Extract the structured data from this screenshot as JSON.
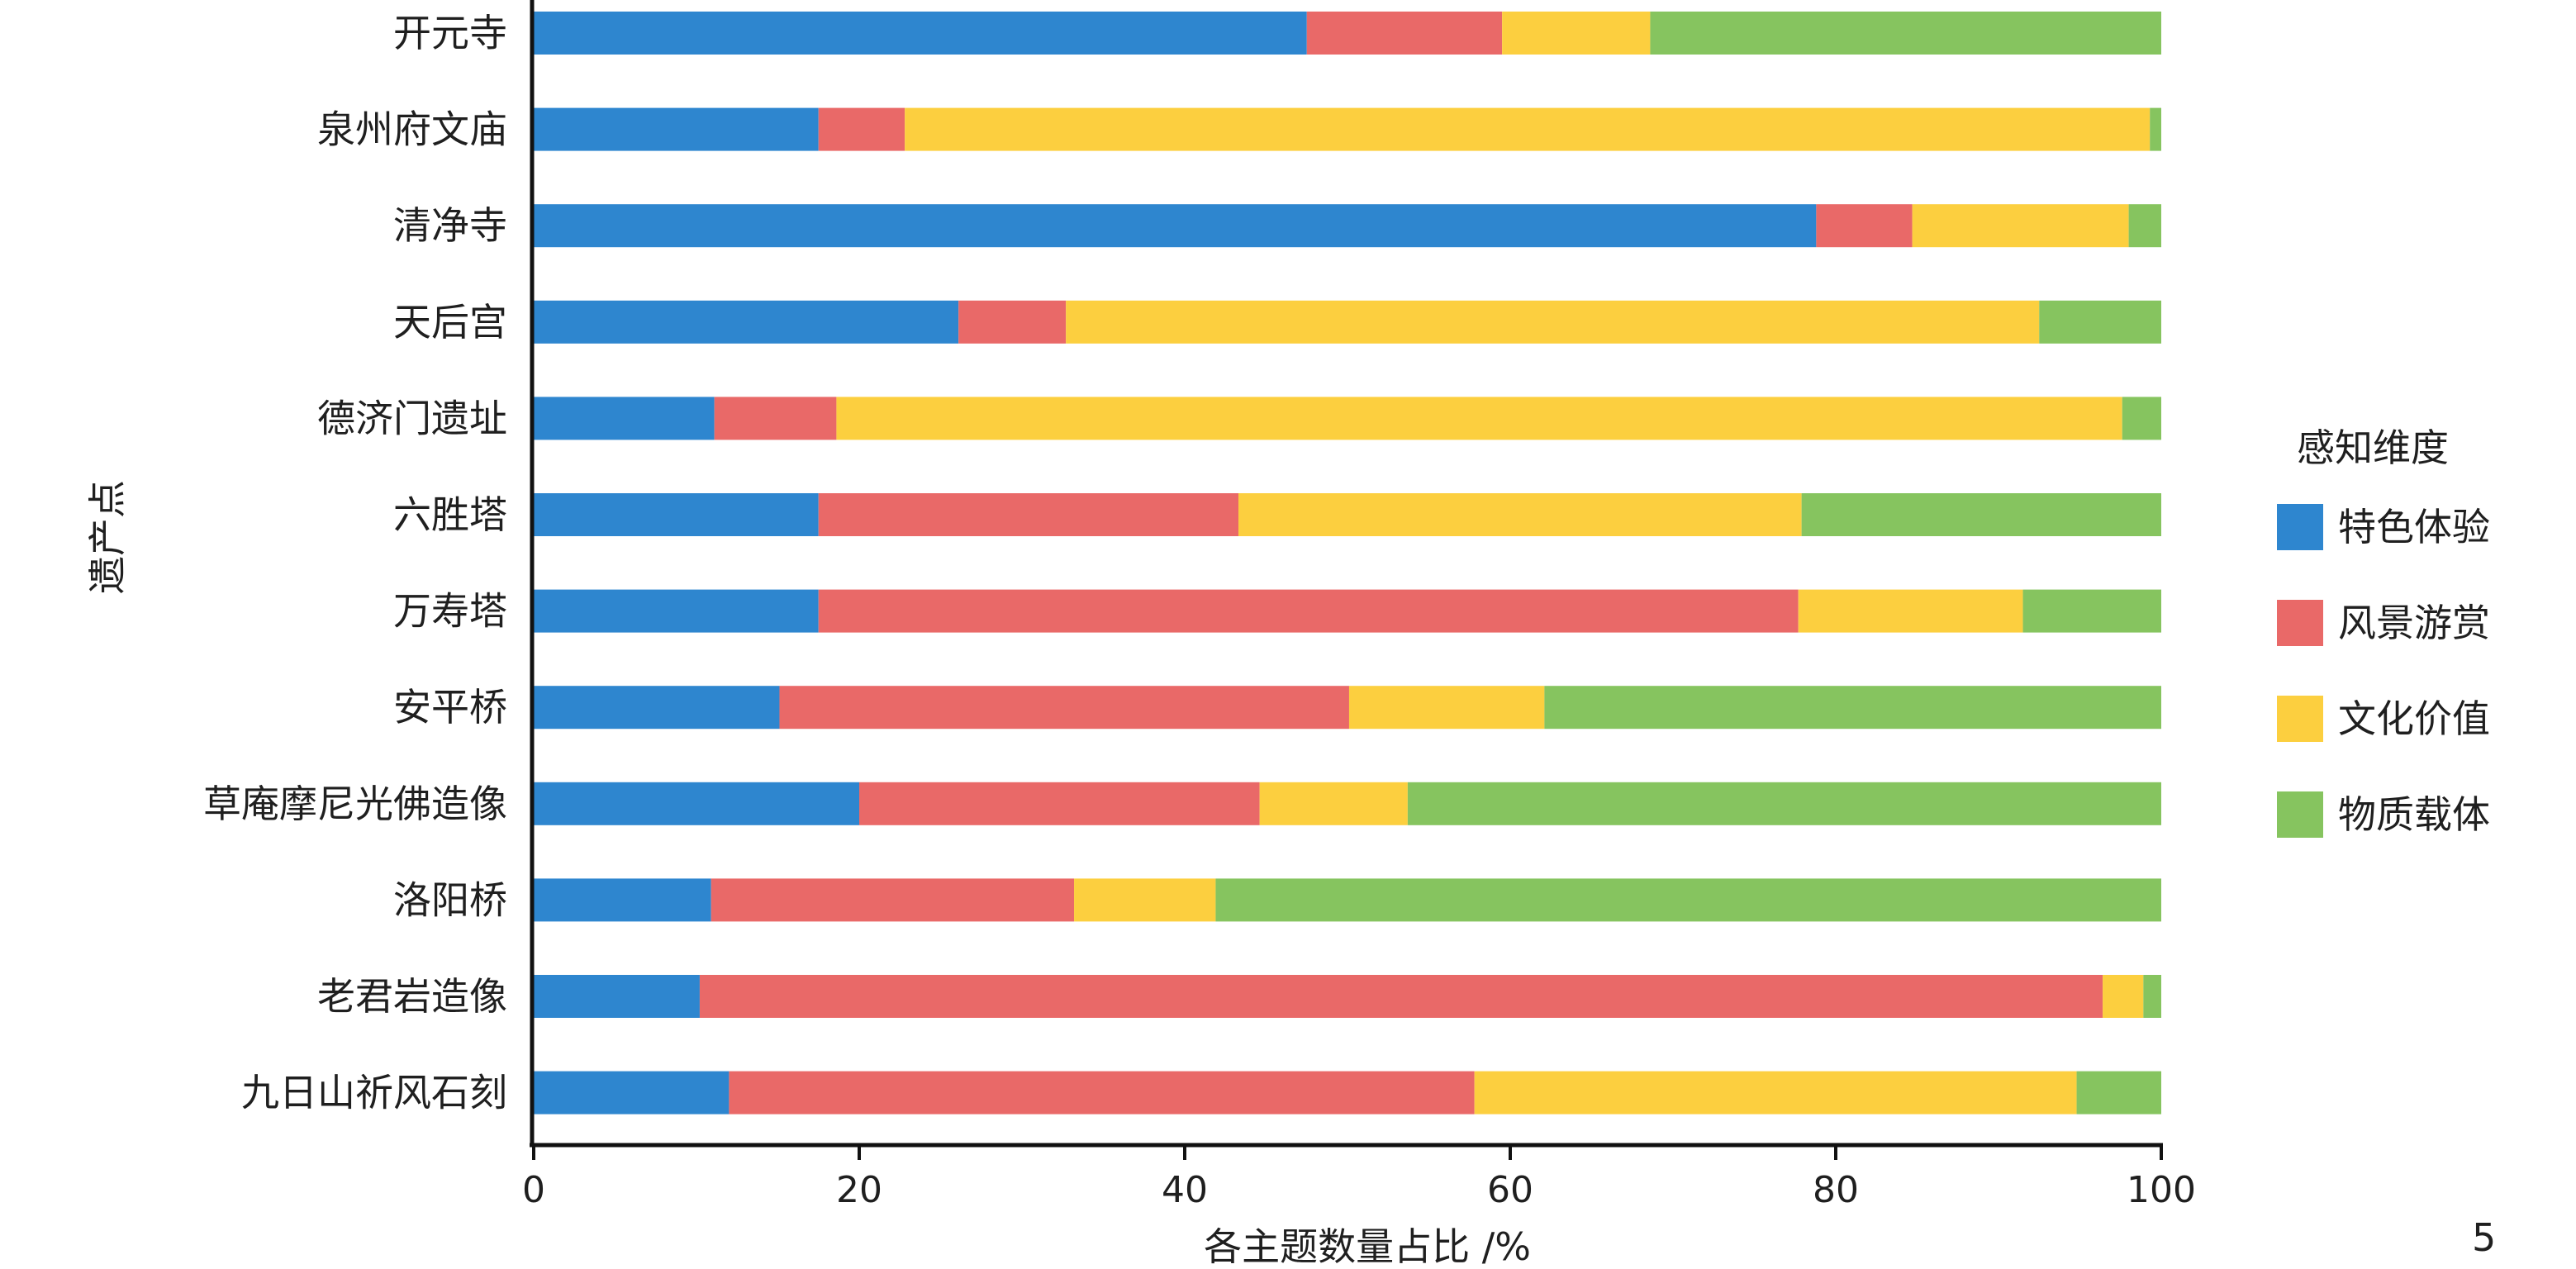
{
  "chart_data": {
    "type": "bar",
    "orientation": "horizontal",
    "stacked": true,
    "categories": [
      "开元寺",
      "泉州府文庙",
      "清净寺",
      "天后宫",
      "德济门遗址",
      "六胜塔",
      "万寿塔",
      "安平桥",
      "草庵摩尼光佛造像",
      "洛阳桥",
      "老君岩造像",
      "九日山祈风石刻"
    ],
    "series": [
      {
        "name": "特色体验",
        "color": "#2e86cf",
        "values": [
          47.5,
          17.5,
          78.8,
          26.1,
          11.1,
          17.5,
          17.5,
          15.1,
          20.0,
          10.9,
          10.2,
          12.0
        ]
      },
      {
        "name": "风景游赏",
        "color": "#e96968",
        "values": [
          12.0,
          5.3,
          5.9,
          6.6,
          7.5,
          25.8,
          60.2,
          35.0,
          24.6,
          22.3,
          86.2,
          45.8
        ]
      },
      {
        "name": "文化价值",
        "color": "#fccf3f",
        "values": [
          9.1,
          76.5,
          13.3,
          59.8,
          79.0,
          34.6,
          13.8,
          12.0,
          9.1,
          8.7,
          2.5,
          37.0
        ]
      },
      {
        "name": "物质载体",
        "color": "#86c45f",
        "values": [
          31.4,
          0.7,
          2.0,
          7.5,
          2.4,
          22.1,
          8.5,
          37.9,
          46.3,
          58.1,
          1.1,
          5.2
        ]
      }
    ],
    "xlim": [
      0,
      100
    ],
    "xticks": [
      "0",
      "20",
      "40",
      "60",
      "80",
      "100"
    ],
    "xlabel": "各主题数量占比 /%",
    "ylabel": "遗产点",
    "legend": {
      "title": "感知维度",
      "position": "right"
    },
    "grid": false
  },
  "page_number": "5"
}
